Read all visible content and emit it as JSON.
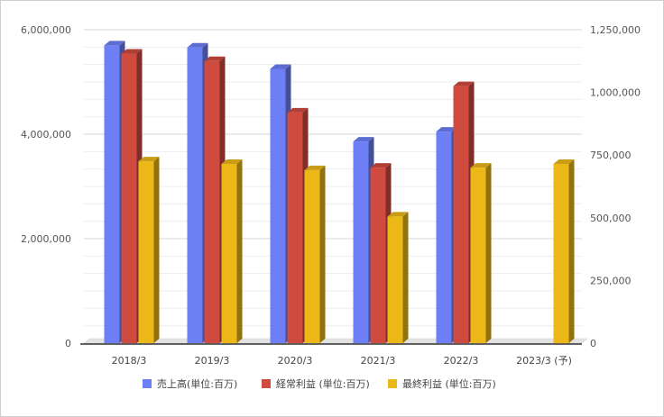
{
  "chart_data": {
    "type": "bar",
    "title": "",
    "xlabel": "",
    "categories": [
      "2018/3",
      "2019/3",
      "2020/3",
      "2021/3",
      "2022/3",
      "2023/3 (予)"
    ],
    "series": [
      {
        "name": "売上高(単位:百万)",
        "axis": "left",
        "color": "#6d7ff5",
        "values": [
          5700000,
          5660000,
          5250000,
          3860000,
          4050000,
          null
        ]
      },
      {
        "name": "経常利益 (単位:百万)",
        "axis": "right",
        "color": "#cf4a3f",
        "values": [
          1155000,
          1125000,
          920000,
          700000,
          1025000,
          null
        ]
      },
      {
        "name": "最終利益 (単位:百万)",
        "axis": "right",
        "color": "#ebb818",
        "values": [
          725000,
          715000,
          690000,
          505000,
          700000,
          715000
        ]
      }
    ],
    "y_left": {
      "min": 0,
      "max": 6000000,
      "ticks": [
        0,
        2000000,
        4000000,
        6000000
      ],
      "tick_labels": [
        "0",
        "2,000,000",
        "4,000,000",
        "6,000,000"
      ]
    },
    "y_right": {
      "min": 0,
      "max": 1250000,
      "ticks": [
        0,
        250000,
        500000,
        750000,
        1000000,
        1250000
      ],
      "tick_labels": [
        "0",
        "250,000",
        "500,000",
        "750,000",
        "1,000,000",
        "1,250,000"
      ]
    },
    "grid": true,
    "legend_position": "bottom"
  }
}
